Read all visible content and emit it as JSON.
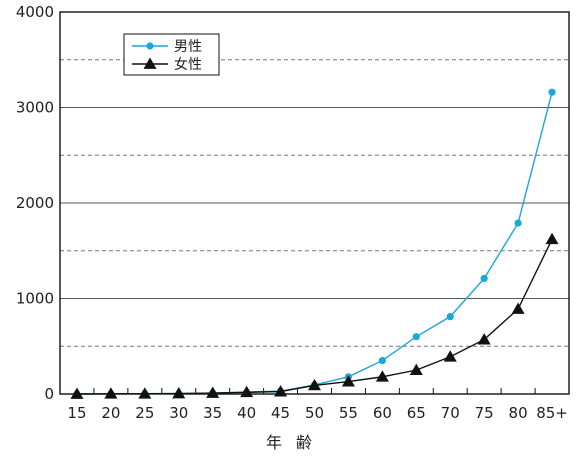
{
  "chart_data": {
    "type": "line",
    "title": "",
    "xlabel": "年齢",
    "ylabel": "",
    "categories": [
      "15",
      "20",
      "25",
      "30",
      "35",
      "40",
      "45",
      "50",
      "55",
      "60",
      "65",
      "70",
      "75",
      "80",
      "85+"
    ],
    "ylim": [
      0,
      4000
    ],
    "yticks": [
      0,
      1000,
      2000,
      3000,
      4000
    ],
    "grid": "solid major lines every 1000, dashed minor lines every 500",
    "legend": "top-left",
    "series": [
      {
        "name": "男性",
        "marker": "circle",
        "color": "#1aa7dc",
        "values": [
          0,
          2,
          3,
          5,
          10,
          20,
          30,
          95,
          180,
          350,
          600,
          810,
          1210,
          1790,
          3160
        ]
      },
      {
        "name": "女性",
        "marker": "triangle",
        "color": "#111111",
        "values": [
          0,
          2,
          3,
          5,
          10,
          18,
          25,
          90,
          130,
          180,
          250,
          390,
          570,
          890,
          1620
        ]
      }
    ]
  }
}
